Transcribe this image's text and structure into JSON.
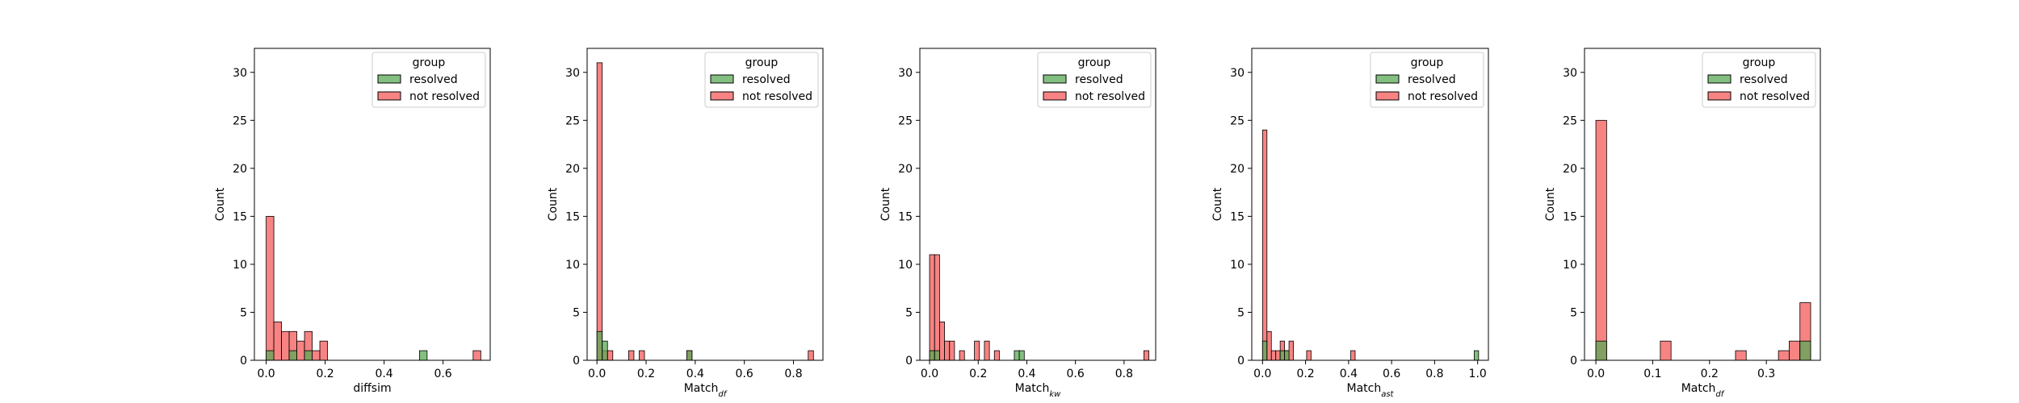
{
  "legend": {
    "title": "group",
    "items": [
      {
        "label": "resolved",
        "color": "#5aa956",
        "opacity": 0.75
      },
      {
        "label": "not resolved",
        "color": "#f45a5a",
        "opacity": 0.75
      }
    ]
  },
  "chart_data": [
    {
      "type": "histogram",
      "xlabel": "diffsim",
      "ylabel": "Count",
      "xlim": [
        -0.04,
        0.76
      ],
      "ylim": [
        0,
        32.5
      ],
      "xticks": [
        0.0,
        0.2,
        0.4,
        0.6
      ],
      "yticks": [
        0,
        5,
        10,
        15,
        20,
        25,
        30
      ],
      "bin_width": 0.026,
      "series": [
        {
          "name": "resolved",
          "bins": [
            [
              0.0,
              1
            ],
            [
              0.078,
              1
            ],
            [
              0.13,
              1
            ],
            [
              0.52,
              1
            ]
          ]
        },
        {
          "name": "not resolved",
          "bins": [
            [
              0.0,
              15
            ],
            [
              0.026,
              4
            ],
            [
              0.052,
              3
            ],
            [
              0.078,
              3
            ],
            [
              0.104,
              2
            ],
            [
              0.13,
              3
            ],
            [
              0.156,
              1
            ],
            [
              0.182,
              2
            ],
            [
              0.702,
              1
            ]
          ]
        }
      ]
    },
    {
      "type": "histogram",
      "xlabel": "Match",
      "xlabel_sub": "df",
      "ylabel": "Count",
      "xlim": [
        -0.04,
        0.92
      ],
      "ylim": [
        0,
        32.5
      ],
      "xticks": [
        0.0,
        0.2,
        0.4,
        0.6,
        0.8
      ],
      "yticks": [
        0,
        5,
        10,
        15,
        20,
        25,
        30
      ],
      "bin_width": 0.0215,
      "series": [
        {
          "name": "resolved",
          "bins": [
            [
              0.0,
              3
            ],
            [
              0.0215,
              2
            ],
            [
              0.3655,
              1
            ]
          ]
        },
        {
          "name": "not resolved",
          "bins": [
            [
              0.0,
              31
            ],
            [
              0.0215,
              1
            ],
            [
              0.043,
              1
            ],
            [
              0.129,
              1
            ],
            [
              0.172,
              1
            ],
            [
              0.3655,
              1
            ],
            [
              0.86,
              1
            ]
          ]
        }
      ]
    },
    {
      "type": "histogram",
      "xlabel": "Match",
      "xlabel_sub": "kw",
      "ylabel": "Count",
      "xlim": [
        -0.04,
        0.93
      ],
      "ylim": [
        0,
        32.5
      ],
      "xticks": [
        0.0,
        0.2,
        0.4,
        0.6,
        0.8
      ],
      "yticks": [
        0,
        5,
        10,
        15,
        20,
        25,
        30
      ],
      "bin_width": 0.0205,
      "series": [
        {
          "name": "resolved",
          "bins": [
            [
              0.0,
              1
            ],
            [
              0.0205,
              1
            ],
            [
              0.3485,
              1
            ],
            [
              0.369,
              1
            ]
          ]
        },
        {
          "name": "not resolved",
          "bins": [
            [
              0.0,
              11
            ],
            [
              0.0205,
              11
            ],
            [
              0.041,
              4
            ],
            [
              0.0615,
              2
            ],
            [
              0.082,
              2
            ],
            [
              0.123,
              1
            ],
            [
              0.1845,
              2
            ],
            [
              0.2255,
              2
            ],
            [
              0.2665,
              1
            ],
            [
              0.8815,
              1
            ]
          ]
        }
      ]
    },
    {
      "type": "histogram",
      "xlabel": "Match",
      "xlabel_sub": "ast",
      "ylabel": "Count",
      "xlim": [
        -0.05,
        1.05
      ],
      "ylim": [
        0,
        32.5
      ],
      "xticks": [
        0.0,
        0.2,
        0.4,
        0.6,
        0.8,
        1.0
      ],
      "yticks": [
        0,
        5,
        10,
        15,
        20,
        25,
        30
      ],
      "bin_width": 0.0205,
      "series": [
        {
          "name": "resolved",
          "bins": [
            [
              0.0,
              2
            ],
            [
              0.082,
              1
            ],
            [
              0.1025,
              1
            ],
            [
              0.984,
              1
            ]
          ]
        },
        {
          "name": "not resolved",
          "bins": [
            [
              0.0,
              24
            ],
            [
              0.0205,
              3
            ],
            [
              0.041,
              1
            ],
            [
              0.0615,
              1
            ],
            [
              0.082,
              2
            ],
            [
              0.1025,
              1
            ],
            [
              0.123,
              2
            ],
            [
              0.205,
              1
            ],
            [
              0.41,
              1
            ]
          ]
        }
      ]
    },
    {
      "type": "histogram",
      "xlabel": "Match",
      "xlabel_sub": "df",
      "ylabel": "Count",
      "xlim": [
        -0.02,
        0.395
      ],
      "ylim": [
        0,
        32.5
      ],
      "xticks": [
        0.0,
        0.1,
        0.2,
        0.3
      ],
      "yticks": [
        0,
        5,
        10,
        15,
        20,
        25,
        30
      ],
      "bin_width": 0.0189,
      "series": [
        {
          "name": "resolved",
          "bins": [
            [
              0.0,
              2
            ],
            [
              0.3591,
              2
            ]
          ]
        },
        {
          "name": "not resolved",
          "bins": [
            [
              0.0,
              25
            ],
            [
              0.1134,
              2
            ],
            [
              0.2457,
              1
            ],
            [
              0.3213,
              1
            ],
            [
              0.3402,
              2
            ],
            [
              0.3591,
              6
            ]
          ]
        }
      ]
    }
  ]
}
